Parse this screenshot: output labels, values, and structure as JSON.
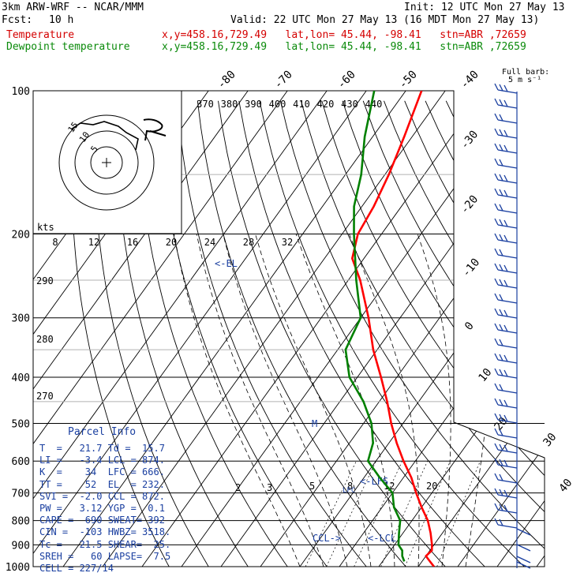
{
  "header": {
    "title": "3km ARW-WRF -- NCAR/MMM",
    "fcst_label": "Fcst:",
    "fcst_value": "10 h",
    "init": "Init: 12 UTC Mon 27 May 13",
    "valid": "Valid: 22 UTC Mon 27 May 13 (16 MDT Mon 27 May 13)",
    "temp_label": "Temperature",
    "dew_label": "Dewpoint temperature",
    "temp_loc": "x,y=458.16,729.49   lat,lon= 45.44, -98.41   stn=ABR ,72659",
    "dew_loc": "x,y=458.16,729.49   lat,lon= 45.44, -98.41   stn=ABR ,72659"
  },
  "colors": {
    "temp": "#ff0000",
    "dew": "#008000",
    "text_blue": "#1a3fa0",
    "header_temp": "#d40000",
    "header_dew": "#0a8a0a"
  },
  "chart_data": {
    "type": "line",
    "pressure_ticks": [
      "100",
      "200",
      "300",
      "400",
      "500",
      "600",
      "700",
      "800",
      "900",
      "1000"
    ],
    "pressure_levels": [
      100,
      200,
      300,
      400,
      500,
      600,
      700,
      800,
      900,
      1000
    ],
    "top_temp_ticks": [
      "-80",
      "-70",
      "-60",
      "-50",
      "-40"
    ],
    "right_temp_ticks": [
      "-30",
      "-20",
      "-10",
      "0",
      "10",
      "20",
      "30",
      "40"
    ],
    "theta_ticks": [
      "370",
      "380",
      "390",
      "400",
      "410",
      "420",
      "430",
      "440"
    ],
    "hodo_speed_ticks": [
      "8",
      "12",
      "16",
      "20",
      "24",
      "28",
      "32"
    ],
    "hodo_kts": "kts",
    "hodo_ring_labels": [
      "5",
      "10",
      "15"
    ],
    "left_theta_labels": [
      "290",
      "280",
      "270"
    ],
    "mixing_labels": [
      "2",
      "3",
      "5",
      "8",
      "12",
      "20"
    ],
    "markers": {
      "el": "<-EL",
      "lfc": "LFC",
      "lcl": "<-LCL",
      "ccl": "CCL->",
      "lfs": "<-LFS",
      "m": "M"
    },
    "barb_legend": "Full barb:\n5 m s⁻¹",
    "temperature": [
      [
        1000,
        24
      ],
      [
        975,
        22
      ],
      [
        950,
        20
      ],
      [
        925,
        20.5
      ],
      [
        900,
        19.5
      ],
      [
        850,
        17
      ],
      [
        800,
        14
      ],
      [
        750,
        10
      ],
      [
        700,
        6
      ],
      [
        650,
        2
      ],
      [
        600,
        -3
      ],
      [
        550,
        -8
      ],
      [
        500,
        -13
      ],
      [
        450,
        -18
      ],
      [
        400,
        -24
      ],
      [
        350,
        -31
      ],
      [
        300,
        -38
      ],
      [
        250,
        -47
      ],
      [
        225,
        -53
      ],
      [
        200,
        -56
      ],
      [
        175,
        -57
      ],
      [
        150,
        -59
      ],
      [
        125,
        -62
      ],
      [
        100,
        -66
      ]
    ],
    "dewpoint": [
      [
        975,
        15.5
      ],
      [
        950,
        14
      ],
      [
        925,
        13
      ],
      [
        900,
        11
      ],
      [
        850,
        9
      ],
      [
        800,
        7
      ],
      [
        750,
        3
      ],
      [
        700,
        0
      ],
      [
        650,
        -6
      ],
      [
        600,
        -12
      ],
      [
        550,
        -14
      ],
      [
        500,
        -18
      ],
      [
        450,
        -24
      ],
      [
        400,
        -32
      ],
      [
        350,
        -38
      ],
      [
        300,
        -40
      ],
      [
        250,
        -48
      ],
      [
        200,
        -57
      ],
      [
        175,
        -62
      ],
      [
        150,
        -66
      ],
      [
        125,
        -72
      ],
      [
        100,
        -78
      ]
    ]
  },
  "parcel": {
    "title": "Parcel Info",
    "rows": [
      "T  =   21.7 Td =  15.7",
      "LI =   -3.4 LCL = 874.",
      "K  =    34  LFC = 666.",
      "TT =    52  EL  = 232.",
      "SVI =  -2.0 CCL = 872.",
      "PW =   3.12 YGP =  0.1",
      "CAPE =  690 SWEAT= 392",
      "CIN =  -103 HWBZ= 3518.",
      "Tc =   21.5 SHEAR=  25.",
      "SREH =   60 LAPSE=  7.5",
      "CELL = 227/14"
    ]
  }
}
